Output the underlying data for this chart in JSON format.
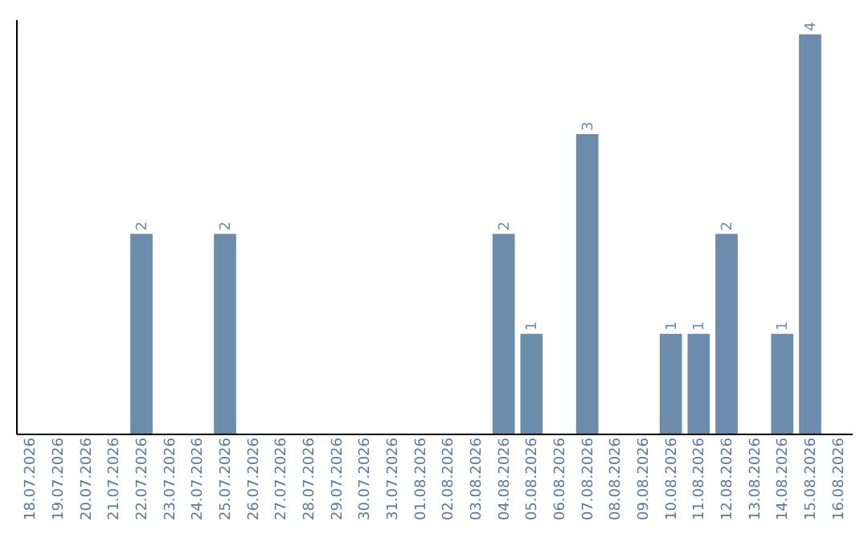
{
  "chart_data": {
    "type": "bar",
    "categories": [
      "18.07.2026",
      "19.07.2026",
      "20.07.2026",
      "21.07.2026",
      "22.07.2026",
      "23.07.2026",
      "24.07.2026",
      "25.07.2026",
      "26.07.2026",
      "27.07.2026",
      "28.07.2026",
      "29.07.2026",
      "30.07.2026",
      "31.07.2026",
      "01.08.2026",
      "02.08.2026",
      "03.08.2026",
      "04.08.2026",
      "05.08.2026",
      "06.08.2026",
      "07.08.2026",
      "08.08.2026",
      "09.08.2026",
      "10.08.2026",
      "11.08.2026",
      "12.08.2026",
      "13.08.2026",
      "14.08.2026",
      "15.08.2026",
      "16.08.2026"
    ],
    "values": [
      0,
      0,
      0,
      0,
      2,
      0,
      0,
      2,
      0,
      0,
      0,
      0,
      0,
      0,
      0,
      0,
      0,
      2,
      1,
      0,
      3,
      0,
      0,
      1,
      1,
      2,
      0,
      1,
      4,
      0
    ],
    "value_labels": [
      null,
      null,
      null,
      null,
      "2",
      null,
      null,
      "2",
      null,
      null,
      null,
      null,
      null,
      null,
      null,
      null,
      null,
      "2",
      "1",
      null,
      "3",
      null,
      null,
      "1",
      "1",
      "2",
      null,
      "1",
      "4",
      null
    ],
    "color": "#6b8cab",
    "ylim": [
      0,
      4.15
    ],
    "grid": false
  }
}
